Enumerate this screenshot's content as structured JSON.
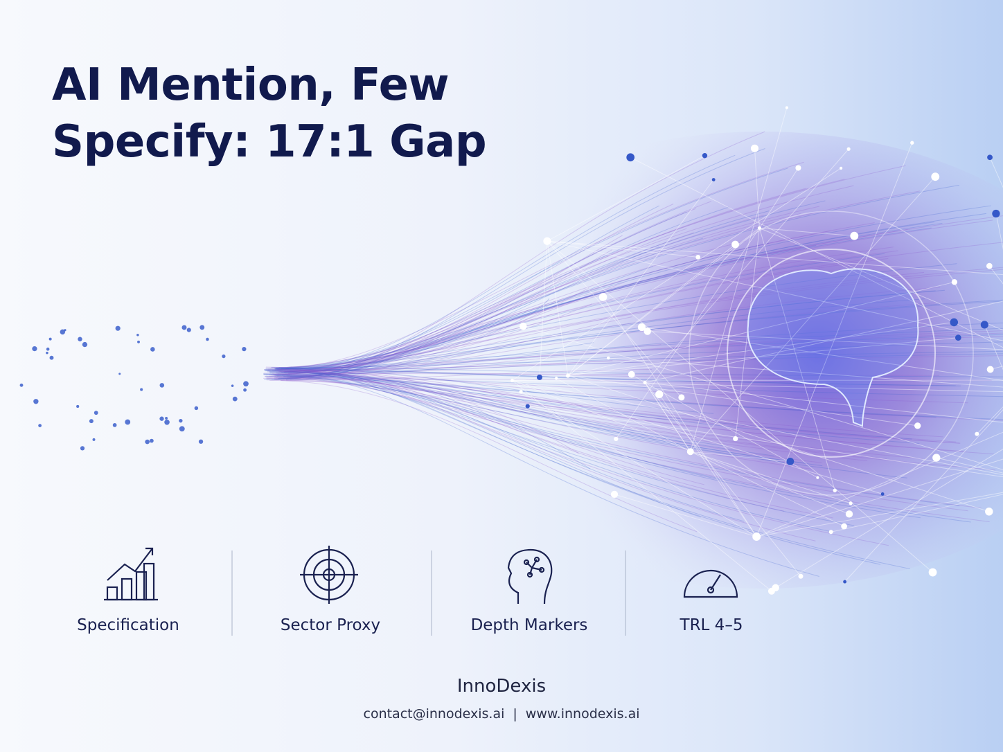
{
  "header": {
    "title_lines": [
      "AI Mention, Few",
      "Specify: 17:1 Gap"
    ]
  },
  "features": [
    {
      "label": "Specification"
    },
    {
      "label": "Sector Proxy"
    },
    {
      "label": "Depth Markers"
    },
    {
      "label": "TRL 4–5"
    }
  ],
  "footer": {
    "brand": "InnoDexis",
    "email": "contact@innodexis.ai",
    "separator": "|",
    "website": "www.innodexis.ai"
  }
}
